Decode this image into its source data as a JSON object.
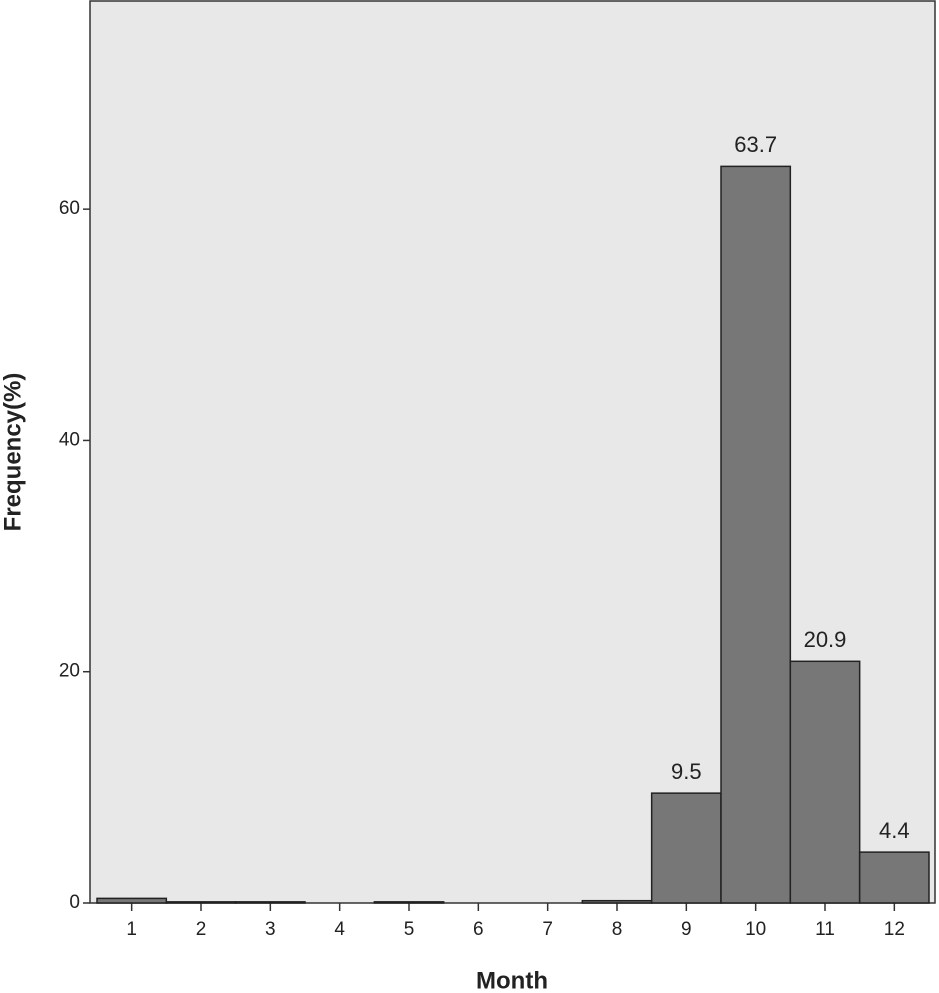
{
  "chart_data": {
    "type": "bar",
    "x_label": "Month",
    "y_label": "Frequency(%)",
    "categories": [
      "1",
      "2",
      "3",
      "4",
      "5",
      "6",
      "7",
      "8",
      "9",
      "10",
      "11",
      "12"
    ],
    "values": [
      0.4,
      0.1,
      0.1,
      0,
      0.1,
      0,
      0,
      0.2,
      9.5,
      63.7,
      20.9,
      4.4
    ],
    "value_labels": [
      null,
      null,
      null,
      null,
      null,
      null,
      null,
      null,
      "9.5",
      "63.7",
      "20.9",
      "4.4"
    ],
    "color": "#777777",
    "ylim": [
      0,
      78
    ],
    "yticks": [
      0,
      20,
      40,
      60
    ]
  }
}
